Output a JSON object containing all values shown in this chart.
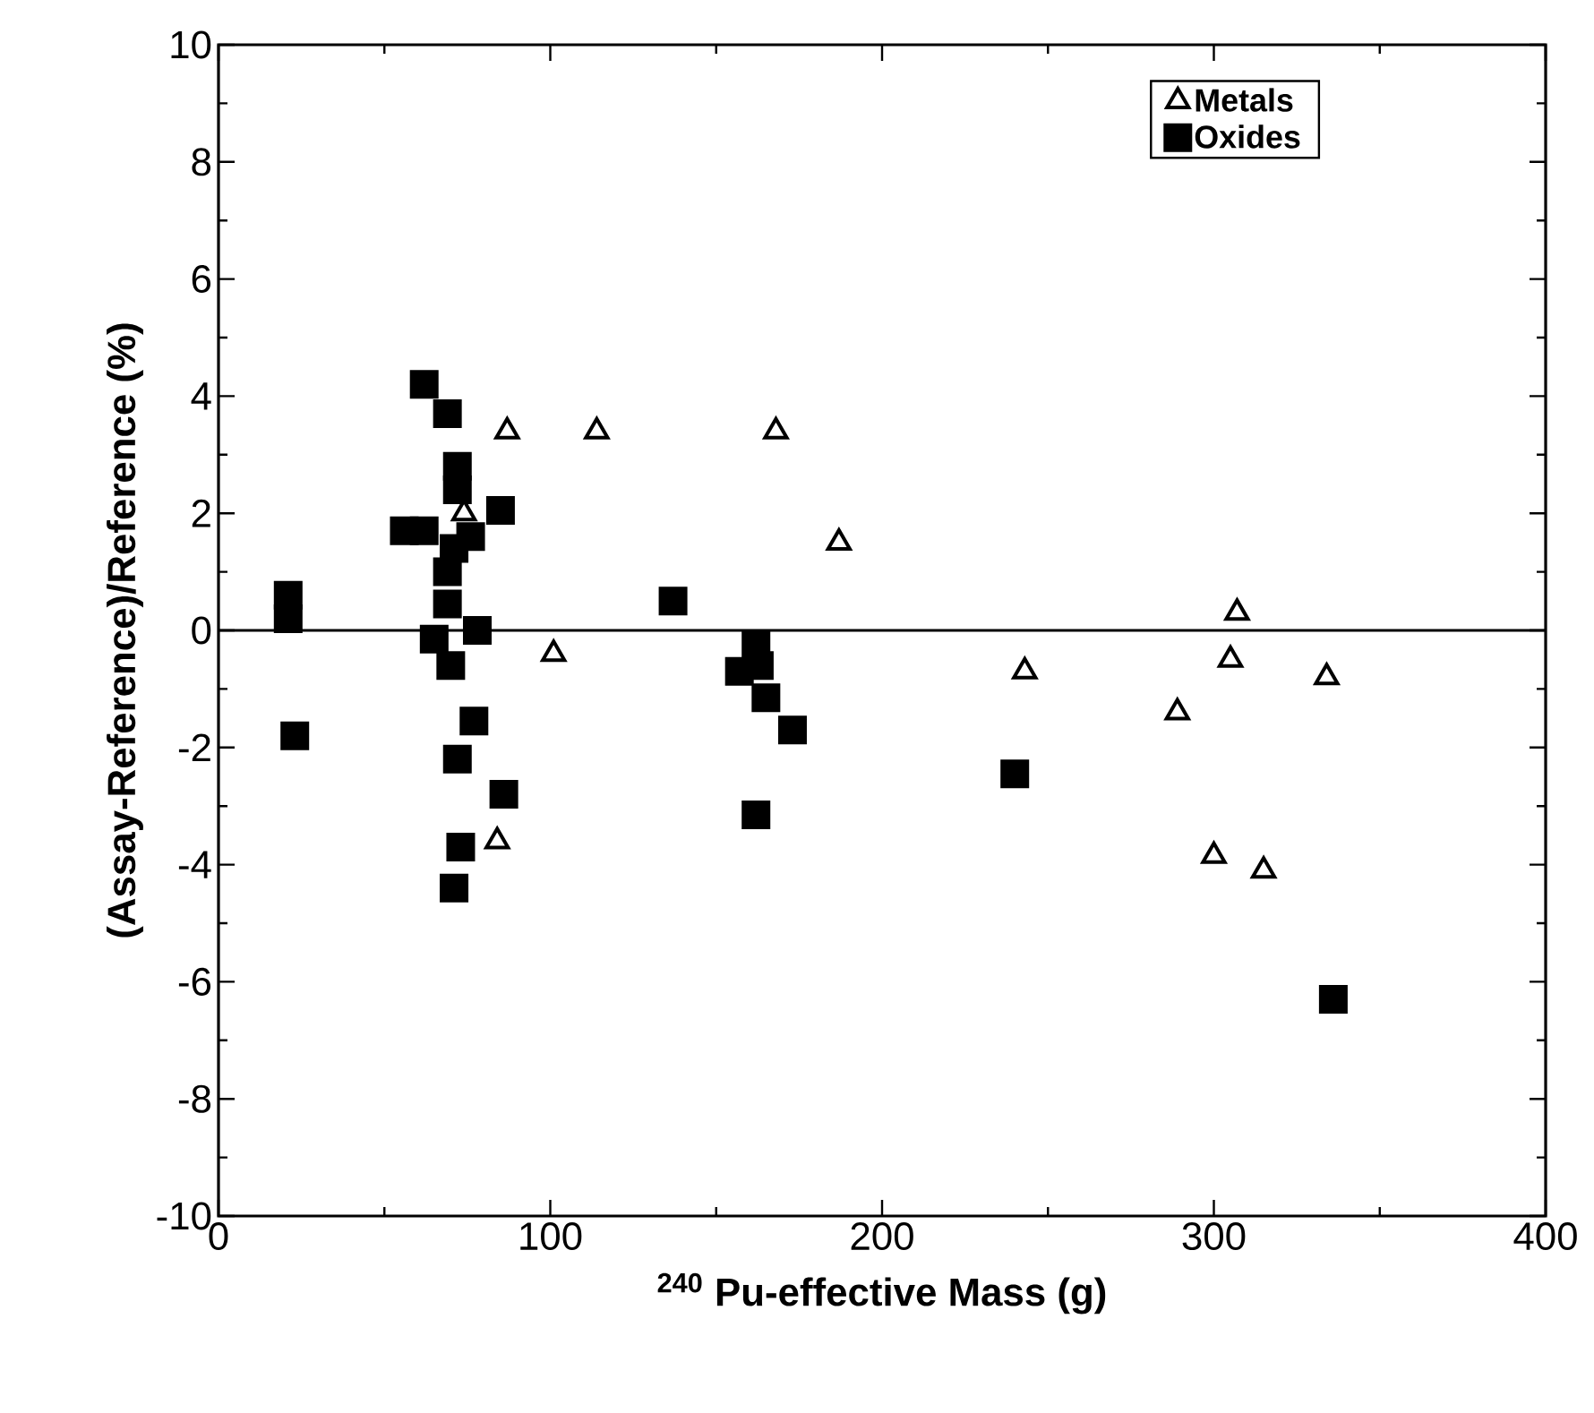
{
  "chart_data": {
    "type": "scatter",
    "xlabel": "$^{240}$ Pu-effective Mass (g)",
    "ylabel": "(Assay-Reference)/Reference (%)",
    "xlim": [
      0,
      400
    ],
    "xticks": [
      0,
      100,
      200,
      300,
      400
    ],
    "ylim": [
      -10,
      10
    ],
    "yticks": [
      -10,
      -8,
      -6,
      -4,
      -2,
      0,
      2,
      4,
      6,
      8,
      10
    ],
    "legend": "top right",
    "grid": false,
    "ref_lines": [
      {
        "axis": "y",
        "value": 0,
        "color": "#000000"
      }
    ],
    "series": [
      {
        "name": "Metals",
        "marker": "triangle",
        "color": "#000000",
        "x": [
          87,
          114,
          168,
          187,
          101,
          74,
          84,
          243,
          307,
          305,
          334,
          289,
          300,
          315
        ],
        "values": [
          3.4,
          3.4,
          3.4,
          1.5,
          -0.4,
          2.0,
          -3.6,
          -0.7,
          0.3,
          -0.5,
          -0.8,
          -1.4,
          -3.85,
          -4.1
        ]
      },
      {
        "name": "Oxides",
        "marker": "square",
        "color": "#000000",
        "x": [
          62,
          69,
          72,
          72,
          85,
          57,
          56,
          62,
          71,
          76,
          69,
          69,
          65,
          78,
          70,
          21,
          21,
          23,
          77,
          72,
          86,
          73,
          71,
          137,
          162,
          157,
          163,
          165,
          173,
          162,
          240,
          336
        ],
        "values": [
          4.2,
          3.7,
          2.8,
          2.4,
          2.05,
          null,
          1.7,
          1.7,
          1.4,
          1.6,
          1.0,
          0.45,
          -0.15,
          0,
          -0.6,
          0.6,
          0.2,
          -1.8,
          -1.55,
          -2.2,
          -2.8,
          -3.7,
          -4.4,
          0.5,
          -0.25,
          -0.7,
          -0.6,
          -1.15,
          -1.7,
          -3.15,
          -2.45,
          -6.3
        ]
      }
    ]
  }
}
